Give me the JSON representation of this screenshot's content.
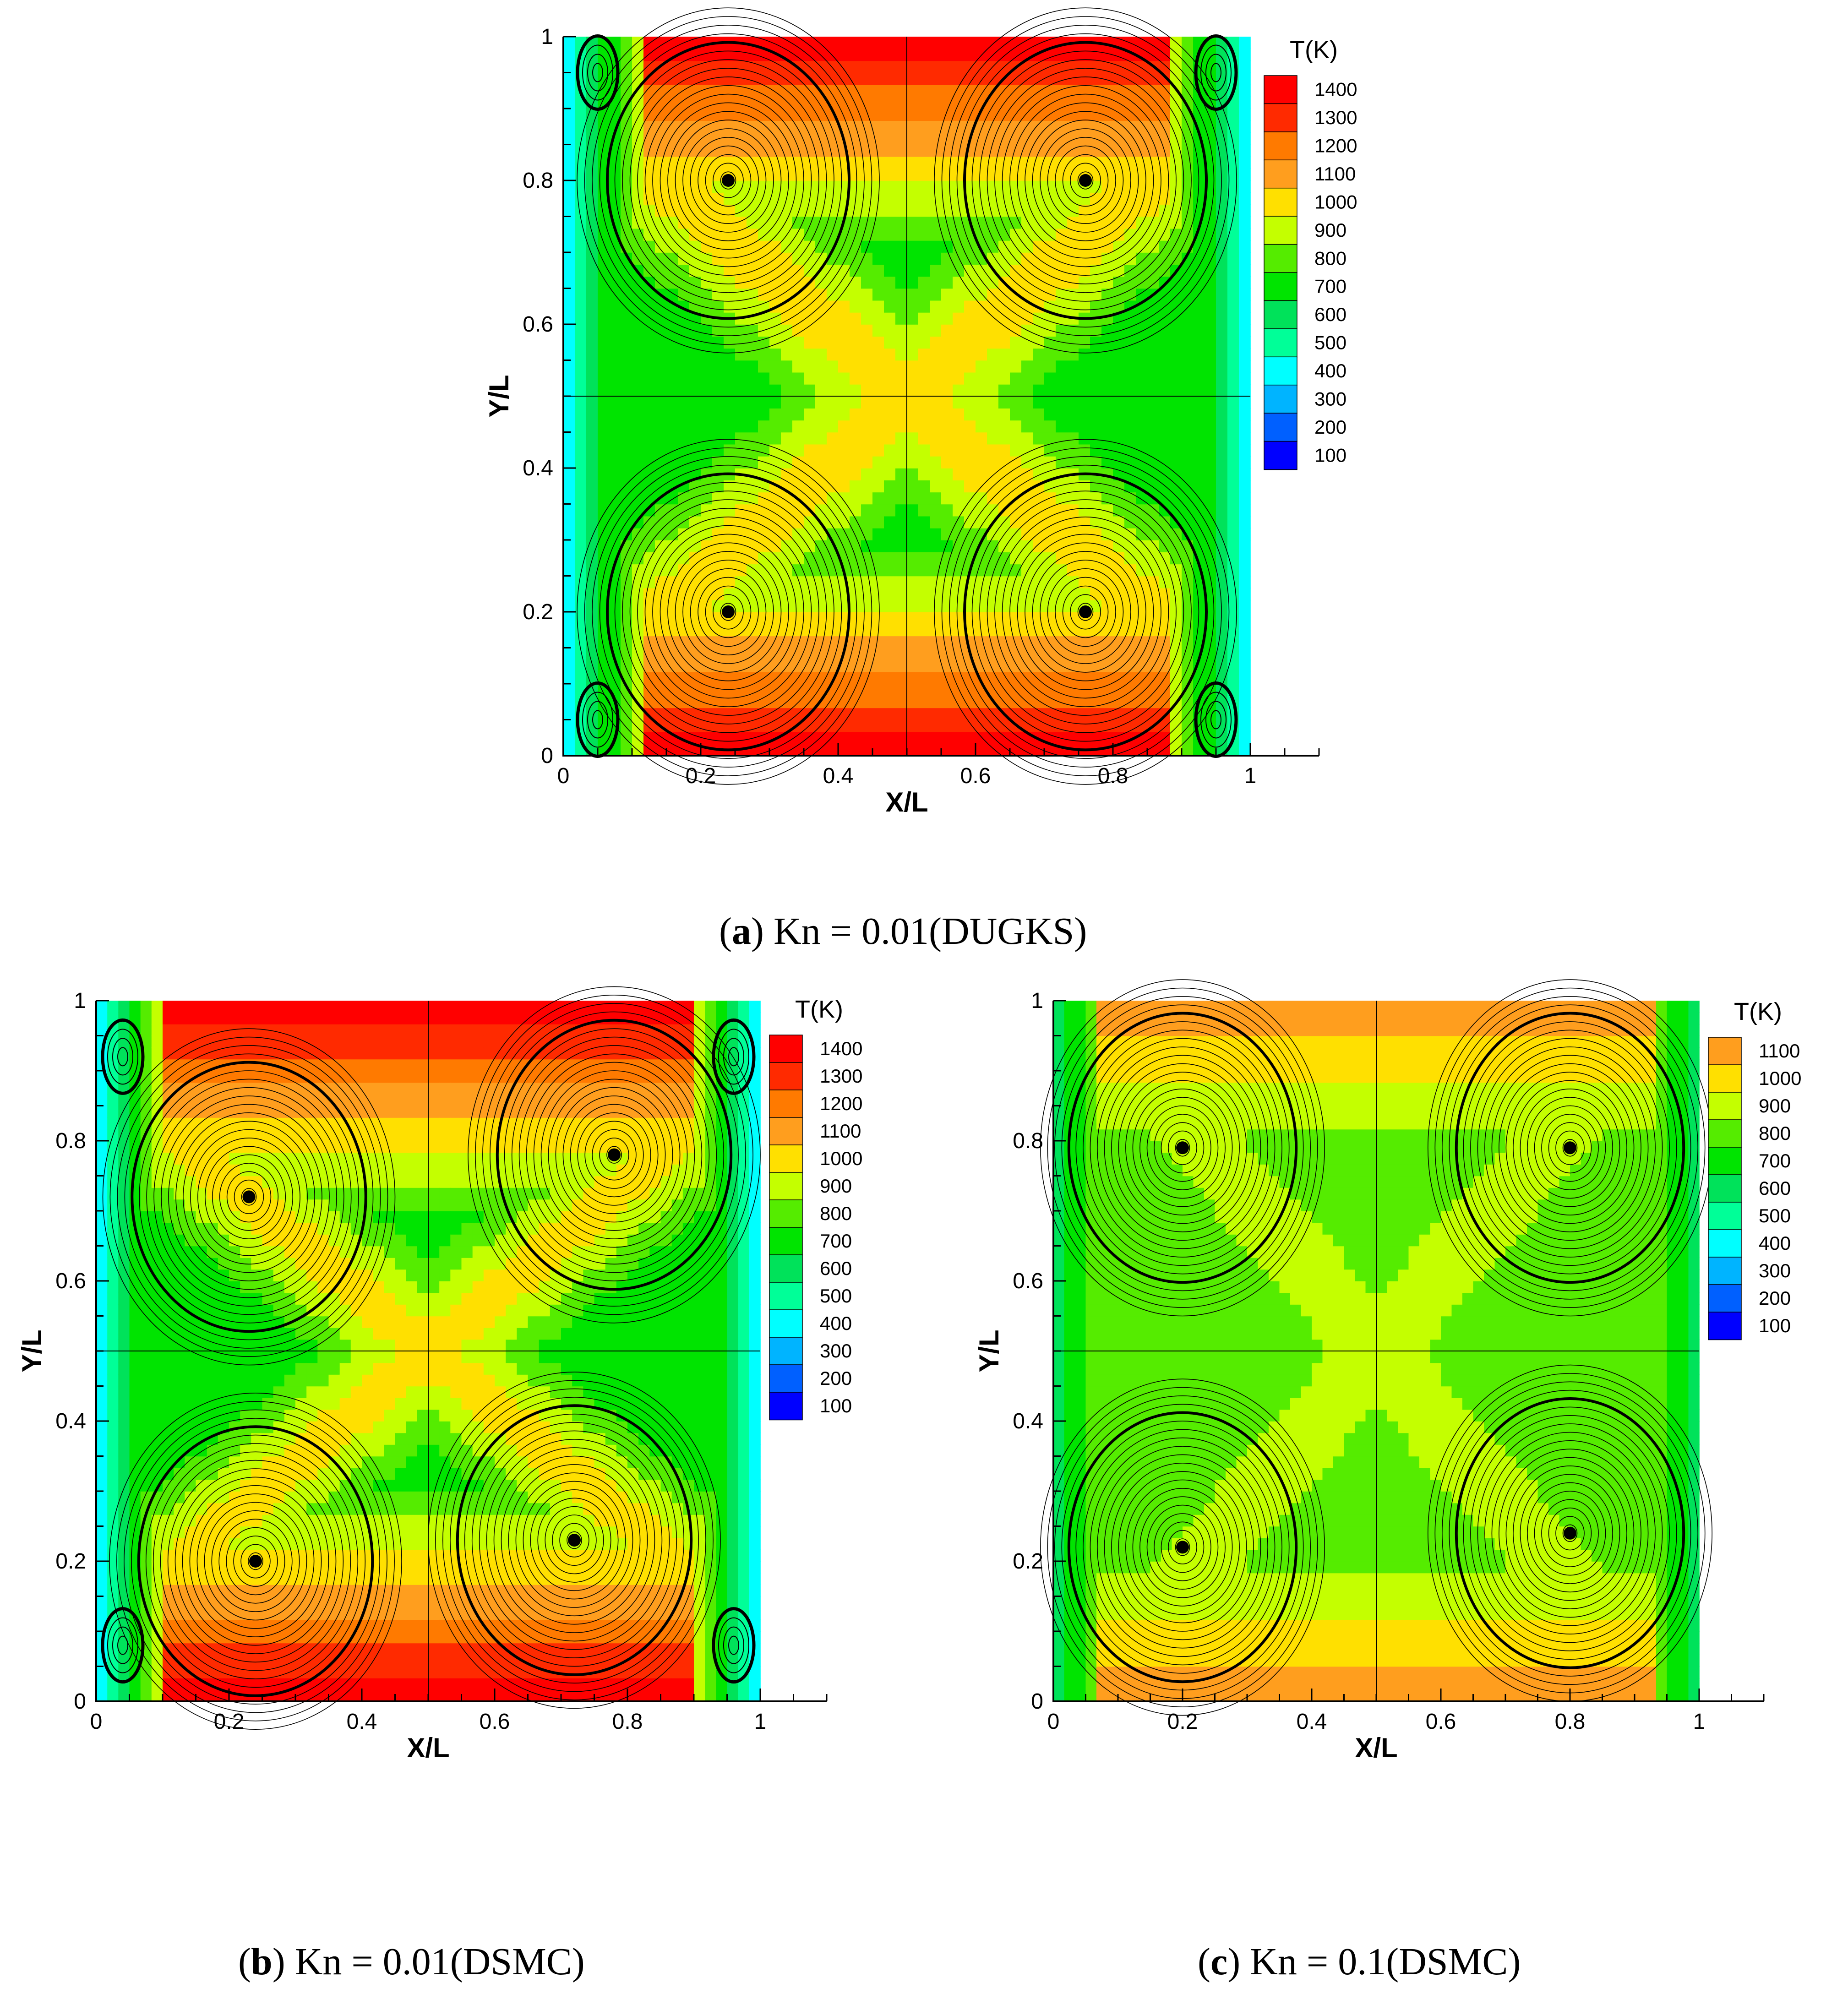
{
  "colormap": [
    "#0000ff",
    "#0060ff",
    "#00b4ff",
    "#00ffff",
    "#00ff98",
    "#00e25a",
    "#00e400",
    "#55ec00",
    "#c4ff00",
    "#ffe000",
    "#ff9e1e",
    "#ff7a00",
    "#ff2a00",
    "#ff0000"
  ],
  "chart_data": [
    {
      "type": "heatmap",
      "caption_letter": "a",
      "caption_rest": " Kn = 0.01(DUGKS)",
      "xlabel": "X/L",
      "ylabel": "Y/L",
      "xlim": [
        0,
        1
      ],
      "ylim": [
        0,
        1
      ],
      "xticks": [
        "0",
        "0.2",
        "0.4",
        "0.6",
        "0.8",
        "1"
      ],
      "yticks": [
        "0",
        "0.2",
        "0.4",
        "0.6",
        "0.8",
        "1"
      ],
      "colorbar_title": "T(K)",
      "colorbar_levels": [
        "1400",
        "1300",
        "1200",
        "1100",
        "1000",
        "900",
        "800",
        "700",
        "600",
        "500",
        "400",
        "300",
        "200",
        "100"
      ],
      "wall_temperature_top_bottom_K": 1400,
      "wall_temperature_sides_K": 400,
      "vortex_centers": [
        [
          0.24,
          0.8
        ],
        [
          0.76,
          0.8
        ],
        [
          0.24,
          0.2
        ],
        [
          0.76,
          0.2
        ]
      ],
      "corner_vortices": [
        [
          0.05,
          0.95
        ],
        [
          0.95,
          0.95
        ],
        [
          0.05,
          0.05
        ],
        [
          0.95,
          0.05
        ]
      ]
    },
    {
      "type": "heatmap",
      "caption_letter": "b",
      "caption_rest": " Kn = 0.01(DSMC)",
      "xlabel": "X/L",
      "ylabel": "Y/L",
      "xlim": [
        0,
        1
      ],
      "ylim": [
        0,
        1
      ],
      "xticks": [
        "0",
        "0.2",
        "0.4",
        "0.6",
        "0.8",
        "1"
      ],
      "yticks": [
        "0",
        "0.2",
        "0.4",
        "0.6",
        "0.8",
        "1"
      ],
      "colorbar_title": "T(K)",
      "colorbar_levels": [
        "1400",
        "1300",
        "1200",
        "1100",
        "1000",
        "900",
        "800",
        "700",
        "600",
        "500",
        "400",
        "300",
        "200",
        "100"
      ],
      "wall_temperature_top_bottom_K": 1400,
      "wall_temperature_sides_K": 400,
      "vortex_centers": [
        [
          0.23,
          0.72
        ],
        [
          0.78,
          0.78
        ],
        [
          0.24,
          0.2
        ],
        [
          0.72,
          0.23
        ]
      ],
      "corner_vortices": [
        [
          0.04,
          0.92
        ],
        [
          0.96,
          0.92
        ],
        [
          0.04,
          0.08
        ],
        [
          0.96,
          0.08
        ]
      ]
    },
    {
      "type": "heatmap",
      "caption_letter": "c",
      "caption_rest": " Kn = 0.1(DSMC)",
      "xlabel": "X/L",
      "ylabel": "Y/L",
      "xlim": [
        0,
        1
      ],
      "ylim": [
        0,
        1
      ],
      "xticks": [
        "0",
        "0.2",
        "0.4",
        "0.6",
        "0.8",
        "1"
      ],
      "yticks": [
        "0",
        "0.2",
        "0.4",
        "0.6",
        "0.8",
        "1"
      ],
      "colorbar_title": "T(K)",
      "colorbar_levels": [
        "1100",
        "1000",
        "900",
        "800",
        "700",
        "600",
        "500",
        "400",
        "300",
        "200",
        "100"
      ],
      "wall_temperature_top_bottom_K": 1100,
      "wall_temperature_sides_K": 600,
      "vortex_centers": [
        [
          0.2,
          0.79
        ],
        [
          0.8,
          0.79
        ],
        [
          0.2,
          0.22
        ],
        [
          0.8,
          0.24
        ]
      ],
      "corner_vortices": []
    }
  ]
}
